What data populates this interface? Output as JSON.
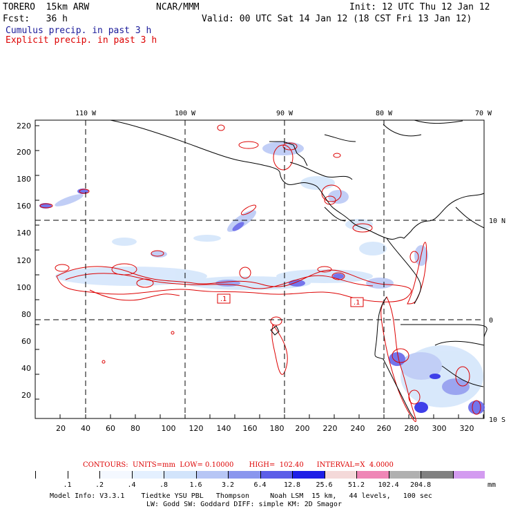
{
  "header": {
    "model": "TORERO  15km ARW",
    "org": "NCAR/MMM",
    "init": "Init: 12 UTC Thu 12 Jan 12",
    "fcst": "Fcst:   36 h",
    "valid": "Valid: 00 UTC Sat 14 Jan 12 (18 CST Fri 13 Jan 12)",
    "legend_cumulus": "Cumulus precip. in past 3 h",
    "legend_explicit": "Explicit precip. in past 3 h",
    "color_cumulus": "#1a1a99",
    "color_explicit": "#dd0000"
  },
  "map": {
    "lon_labels": [
      "110 W",
      "100 W",
      "90 W",
      "80 W",
      "70 W"
    ],
    "lat_labels": [
      "10 N",
      "0",
      "10 S"
    ],
    "x_ticks": [
      "20",
      "40",
      "60",
      "80",
      "100",
      "120",
      "140",
      "160",
      "180",
      "200",
      "220",
      "240",
      "260",
      "280",
      "300",
      "320"
    ],
    "y_ticks": [
      "220",
      "200",
      "180",
      "160",
      "140",
      "120",
      "100",
      "80",
      "60",
      "40",
      "20"
    ],
    "contour_labels": [
      ".1",
      ".1"
    ]
  },
  "contours": {
    "line": "CONTOURS:  UNITS=mm  LOW= 0.10000       HIGH=  102.40      INTERVAL=X  4.0000"
  },
  "colorbar": {
    "labels": [
      ".1",
      ".2",
      ".4",
      ".8",
      "1.6",
      "3.2",
      "6.4",
      "12.8",
      "25.6",
      "51.2",
      "102.4",
      "204.8"
    ],
    "units": "mm",
    "colors": [
      "#ffffff",
      "#ffffff",
      "#f4f8ff",
      "#e4f0ff",
      "#d2e4fb",
      "#b7c6f5",
      "#8a96ee",
      "#5c5ee8",
      "#1e1ee6",
      "#f4d9d9",
      "#ef86b6",
      "#b0b0b0",
      "#808080",
      "#d39bf0"
    ]
  },
  "footer": {
    "line1": "Model Info: V3.3.1    Tiedtke YSU PBL   Thompson     Noah LSM  15 km,   44 levels,   100 sec",
    "line2": "LW: Godd SW: Goddard DIFF: simple KM: 2D Smagor"
  }
}
